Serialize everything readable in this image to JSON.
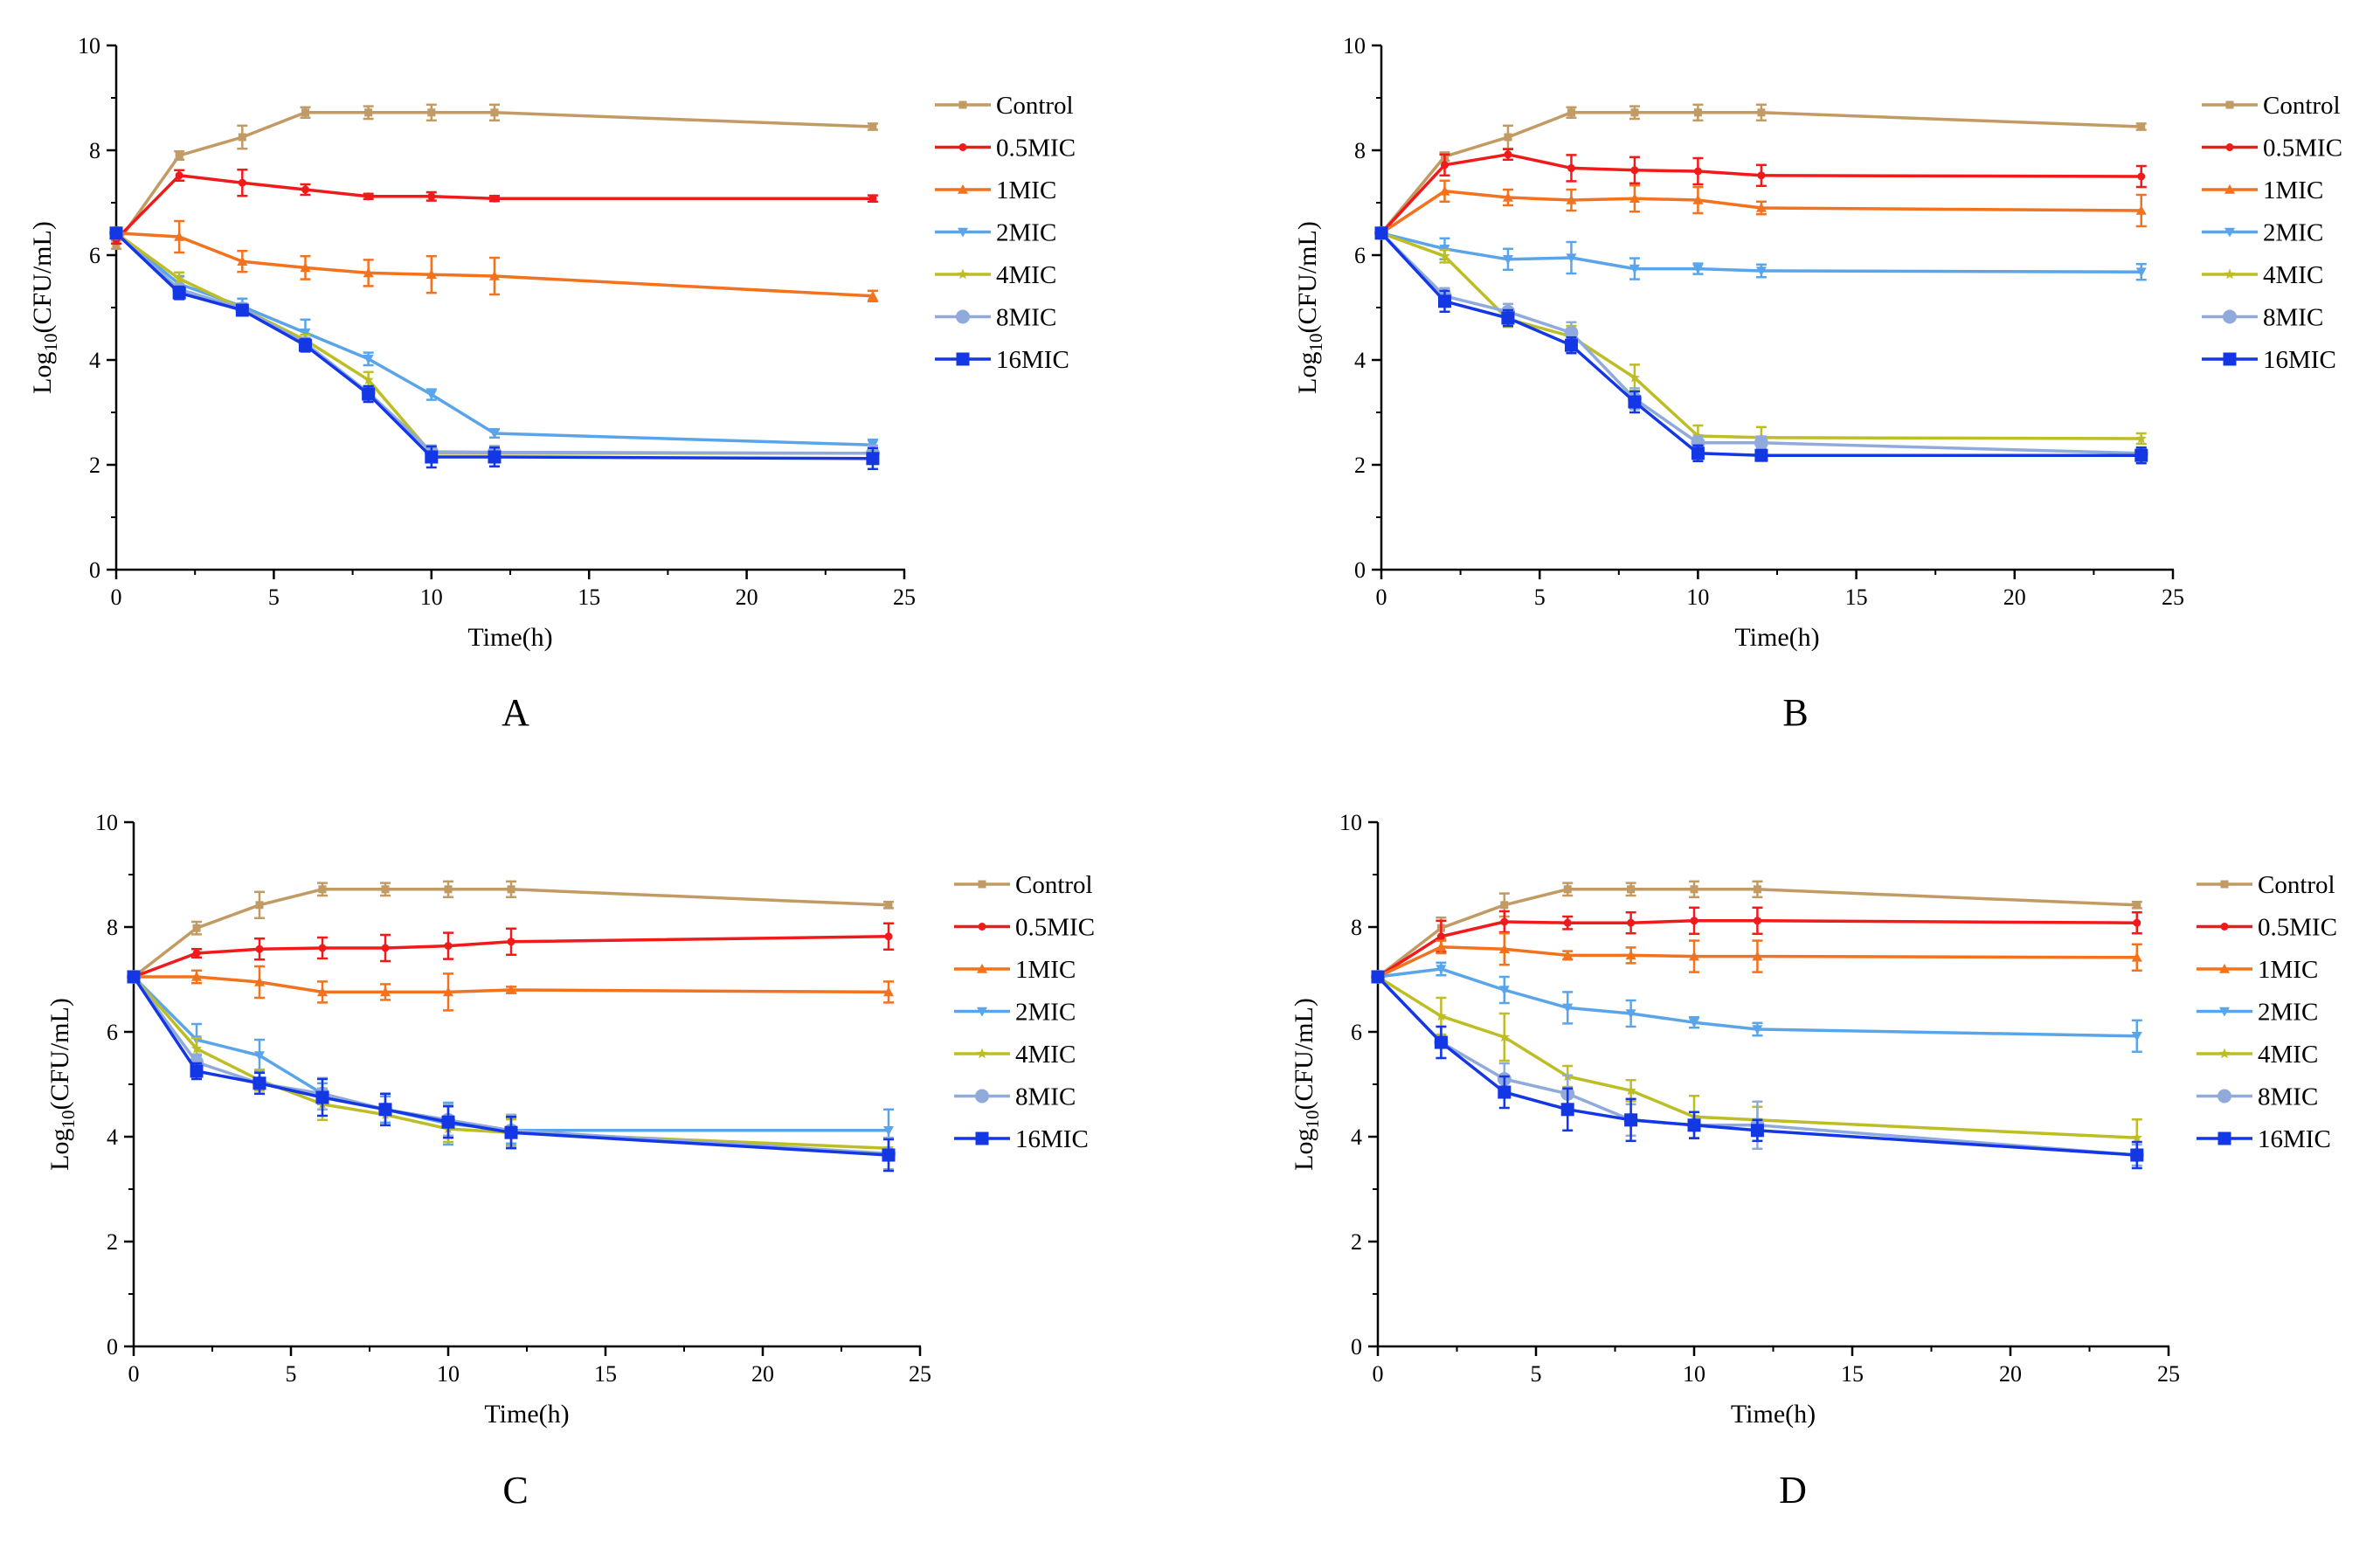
{
  "figure": {
    "series_colors": {
      "Control": "#C29A63",
      "0.5MIC": "#F11A1A",
      "1MIC": "#F2721E",
      "2MIC": "#5AA5EA",
      "4MIC": "#BDBD25",
      "8MIC": "#8FAADB",
      "16MIC": "#1437E6"
    },
    "series_markers": {
      "Control": "square-small",
      "0.5MIC": "dot",
      "1MIC": "triangle-up",
      "2MIC": "triangle-down",
      "4MIC": "star",
      "8MIC": "circle",
      "16MIC": "square"
    }
  },
  "chart_data": [
    {
      "type": "line",
      "panel_label": "A",
      "xlabel": "Time(h)",
      "ylabel_main": "Log",
      "ylabel_sub": "10",
      "ylabel_tail": "(CFU/mL)",
      "xlim": [
        0,
        25
      ],
      "ylim": [
        0,
        10
      ],
      "xticks": [
        0,
        5,
        10,
        15,
        20,
        25
      ],
      "yticks": [
        0,
        2,
        4,
        6,
        8,
        10
      ],
      "x": [
        0,
        2,
        4,
        6,
        8,
        10,
        12,
        24
      ],
      "legend": [
        "Control",
        "0.5MIC",
        "1MIC",
        "2MIC",
        "4MIC",
        "8MIC",
        "16MIC"
      ],
      "series": [
        {
          "name": "Control",
          "values": [
            6.2,
            7.9,
            8.25,
            8.72,
            8.72,
            8.72,
            8.72,
            8.45
          ],
          "errors": [
            0.08,
            0.08,
            0.22,
            0.1,
            0.12,
            0.15,
            0.15,
            0.06
          ]
        },
        {
          "name": "0.5MIC",
          "values": [
            6.3,
            7.52,
            7.38,
            7.25,
            7.12,
            7.12,
            7.08,
            7.08
          ],
          "errors": [
            0.08,
            0.1,
            0.25,
            0.1,
            0.05,
            0.08,
            0.05,
            0.06
          ]
        },
        {
          "name": "1MIC",
          "values": [
            6.42,
            6.35,
            5.88,
            5.76,
            5.66,
            5.63,
            5.6,
            5.22
          ],
          "errors": [
            0.06,
            0.3,
            0.2,
            0.22,
            0.25,
            0.35,
            0.35,
            0.1
          ]
        },
        {
          "name": "2MIC",
          "values": [
            6.42,
            5.45,
            5.02,
            4.52,
            4.02,
            3.34,
            2.6,
            2.38
          ],
          "errors": [
            0.06,
            0.15,
            0.15,
            0.25,
            0.12,
            0.1,
            0.08,
            0.1
          ]
        },
        {
          "name": "4MIC",
          "values": [
            6.42,
            5.55,
            4.98,
            4.38,
            3.62,
            2.22,
            2.22,
            2.22
          ],
          "errors": [
            0.06,
            0.12,
            0.1,
            0.1,
            0.15,
            0.08,
            0.08,
            0.1
          ]
        },
        {
          "name": "8MIC",
          "values": [
            6.42,
            5.35,
            4.98,
            4.32,
            3.38,
            2.25,
            2.24,
            2.22
          ],
          "errors": [
            0.06,
            0.1,
            0.1,
            0.1,
            0.12,
            0.12,
            0.12,
            0.15
          ]
        },
        {
          "name": "16MIC",
          "values": [
            6.42,
            5.28,
            4.95,
            4.28,
            3.35,
            2.15,
            2.15,
            2.12
          ],
          "errors": [
            0.06,
            0.12,
            0.08,
            0.12,
            0.15,
            0.2,
            0.18,
            0.2
          ]
        }
      ]
    },
    {
      "type": "line",
      "panel_label": "B",
      "xlabel": "Time(h)",
      "ylabel_main": "Log",
      "ylabel_sub": "10",
      "ylabel_tail": "(CFU/mL)",
      "xlim": [
        0,
        25
      ],
      "ylim": [
        0,
        10
      ],
      "xticks": [
        0,
        5,
        10,
        15,
        20,
        25
      ],
      "yticks": [
        0,
        2,
        4,
        6,
        8,
        10
      ],
      "x": [
        0,
        2,
        4,
        6,
        8,
        10,
        12,
        24
      ],
      "legend": [
        "Control",
        "0.5MIC",
        "1MIC",
        "2MIC",
        "4MIC",
        "8MIC",
        "16MIC"
      ],
      "series": [
        {
          "name": "Control",
          "values": [
            6.42,
            7.88,
            8.25,
            8.72,
            8.72,
            8.72,
            8.72,
            8.45
          ],
          "errors": [
            0.06,
            0.08,
            0.22,
            0.1,
            0.12,
            0.15,
            0.15,
            0.06
          ]
        },
        {
          "name": "0.5MIC",
          "values": [
            6.42,
            7.72,
            7.92,
            7.66,
            7.62,
            7.6,
            7.52,
            7.5
          ],
          "errors": [
            0.06,
            0.2,
            0.1,
            0.25,
            0.25,
            0.25,
            0.2,
            0.2
          ]
        },
        {
          "name": "1MIC",
          "values": [
            6.42,
            7.22,
            7.1,
            7.05,
            7.08,
            7.05,
            6.9,
            6.85
          ],
          "errors": [
            0.06,
            0.2,
            0.15,
            0.2,
            0.25,
            0.25,
            0.12,
            0.3
          ]
        },
        {
          "name": "2MIC",
          "values": [
            6.42,
            6.12,
            5.92,
            5.95,
            5.74,
            5.74,
            5.7,
            5.68
          ],
          "errors": [
            0.06,
            0.2,
            0.2,
            0.3,
            0.2,
            0.1,
            0.12,
            0.15
          ]
        },
        {
          "name": "4MIC",
          "values": [
            6.42,
            5.98,
            4.78,
            4.45,
            3.66,
            2.55,
            2.52,
            2.5
          ],
          "errors": [
            0.06,
            0.12,
            0.15,
            0.2,
            0.25,
            0.2,
            0.2,
            0.1
          ]
        },
        {
          "name": "8MIC",
          "values": [
            6.42,
            5.22,
            4.92,
            4.52,
            3.26,
            2.42,
            2.42,
            2.22
          ],
          "errors": [
            0.06,
            0.15,
            0.15,
            0.2,
            0.2,
            0.12,
            0.12,
            0.1
          ]
        },
        {
          "name": "16MIC",
          "values": [
            6.42,
            5.12,
            4.8,
            4.28,
            3.2,
            2.22,
            2.18,
            2.18
          ],
          "errors": [
            0.06,
            0.2,
            0.15,
            0.15,
            0.2,
            0.15,
            0.05,
            0.15
          ]
        }
      ]
    },
    {
      "type": "line",
      "panel_label": "C",
      "xlabel": "Time(h)",
      "ylabel_main": "Log",
      "ylabel_sub": "10",
      "ylabel_tail": "(CFU/mL)",
      "xlim": [
        0,
        25
      ],
      "ylim": [
        0,
        10
      ],
      "xticks": [
        0,
        5,
        10,
        15,
        20,
        25
      ],
      "yticks": [
        0,
        2,
        4,
        6,
        8,
        10
      ],
      "x": [
        0,
        2,
        4,
        6,
        8,
        10,
        12,
        24
      ],
      "legend": [
        "Control",
        "0.5MIC",
        "1MIC",
        "2MIC",
        "4MIC",
        "8MIC",
        "16MIC"
      ],
      "series": [
        {
          "name": "Control",
          "values": [
            7.05,
            7.98,
            8.42,
            8.72,
            8.72,
            8.72,
            8.72,
            8.42
          ],
          "errors": [
            0.05,
            0.12,
            0.25,
            0.12,
            0.12,
            0.15,
            0.15,
            0.06
          ]
        },
        {
          "name": "0.5MIC",
          "values": [
            7.05,
            7.5,
            7.58,
            7.6,
            7.6,
            7.64,
            7.72,
            7.82
          ],
          "errors": [
            0.05,
            0.08,
            0.2,
            0.2,
            0.25,
            0.25,
            0.25,
            0.25
          ]
        },
        {
          "name": "1MIC",
          "values": [
            7.05,
            7.05,
            6.95,
            6.76,
            6.76,
            6.76,
            6.8,
            6.76
          ],
          "errors": [
            0.05,
            0.12,
            0.3,
            0.2,
            0.15,
            0.35,
            0.06,
            0.2
          ]
        },
        {
          "name": "2MIC",
          "values": [
            7.05,
            5.85,
            5.55,
            4.82,
            4.52,
            4.25,
            4.12,
            4.12
          ],
          "errors": [
            0.05,
            0.3,
            0.3,
            0.2,
            0.25,
            0.4,
            0.25,
            0.4
          ]
        },
        {
          "name": "4MIC",
          "values": [
            7.05,
            5.68,
            5.08,
            4.62,
            4.42,
            4.15,
            4.08,
            3.78
          ],
          "errors": [
            0.05,
            0.2,
            0.2,
            0.3,
            0.2,
            0.25,
            0.25,
            0.2
          ]
        },
        {
          "name": "8MIC",
          "values": [
            7.05,
            5.42,
            5.02,
            4.82,
            4.52,
            4.32,
            4.12,
            3.68
          ],
          "errors": [
            0.05,
            0.15,
            0.2,
            0.3,
            0.3,
            0.3,
            0.3,
            0.3
          ]
        },
        {
          "name": "16MIC",
          "values": [
            7.05,
            5.25,
            5.02,
            4.75,
            4.52,
            4.28,
            4.08,
            3.65
          ],
          "errors": [
            0.05,
            0.15,
            0.2,
            0.35,
            0.3,
            0.3,
            0.3,
            0.3
          ]
        }
      ]
    },
    {
      "type": "line",
      "panel_label": "D",
      "xlabel": "Time(h)",
      "ylabel_main": "Log",
      "ylabel_sub": "10",
      "ylabel_tail": "(CFU/mL)",
      "xlim": [
        0,
        25
      ],
      "ylim": [
        0,
        10
      ],
      "xticks": [
        0,
        5,
        10,
        15,
        20,
        25
      ],
      "yticks": [
        0,
        2,
        4,
        6,
        8,
        10
      ],
      "x": [
        0,
        2,
        4,
        6,
        8,
        10,
        12,
        24
      ],
      "legend": [
        "Control",
        "0.5MIC",
        "1MIC",
        "2MIC",
        "4MIC",
        "8MIC",
        "16MIC"
      ],
      "series": [
        {
          "name": "Control",
          "values": [
            7.05,
            7.98,
            8.42,
            8.72,
            8.72,
            8.72,
            8.72,
            8.42
          ],
          "errors": [
            0.05,
            0.2,
            0.22,
            0.12,
            0.12,
            0.15,
            0.15,
            0.06
          ]
        },
        {
          "name": "0.5MIC",
          "values": [
            7.05,
            7.82,
            8.1,
            8.08,
            8.08,
            8.12,
            8.12,
            8.08
          ],
          "errors": [
            0.05,
            0.3,
            0.2,
            0.12,
            0.2,
            0.25,
            0.25,
            0.2
          ]
        },
        {
          "name": "1MIC",
          "values": [
            7.05,
            7.62,
            7.58,
            7.46,
            7.46,
            7.44,
            7.44,
            7.42
          ],
          "errors": [
            0.05,
            0.12,
            0.3,
            0.08,
            0.15,
            0.3,
            0.3,
            0.25
          ]
        },
        {
          "name": "2MIC",
          "values": [
            7.05,
            7.2,
            6.8,
            6.46,
            6.35,
            6.18,
            6.05,
            5.92
          ],
          "errors": [
            0.05,
            0.12,
            0.25,
            0.3,
            0.25,
            0.1,
            0.12,
            0.3
          ]
        },
        {
          "name": "4MIC",
          "values": [
            7.05,
            6.3,
            5.9,
            5.15,
            4.88,
            4.38,
            4.32,
            3.98
          ],
          "errors": [
            0.05,
            0.35,
            0.45,
            0.2,
            0.2,
            0.4,
            0.25,
            0.35
          ]
        },
        {
          "name": "8MIC",
          "values": [
            7.05,
            5.8,
            5.1,
            4.82,
            4.32,
            4.22,
            4.22,
            3.65
          ],
          "errors": [
            0.05,
            0.3,
            0.3,
            0.35,
            0.3,
            0.25,
            0.45,
            0.2
          ]
        },
        {
          "name": "16MIC",
          "values": [
            7.05,
            5.8,
            4.85,
            4.52,
            4.32,
            4.22,
            4.12,
            3.65
          ],
          "errors": [
            0.05,
            0.3,
            0.3,
            0.4,
            0.4,
            0.25,
            0.2,
            0.25
          ]
        }
      ]
    }
  ]
}
